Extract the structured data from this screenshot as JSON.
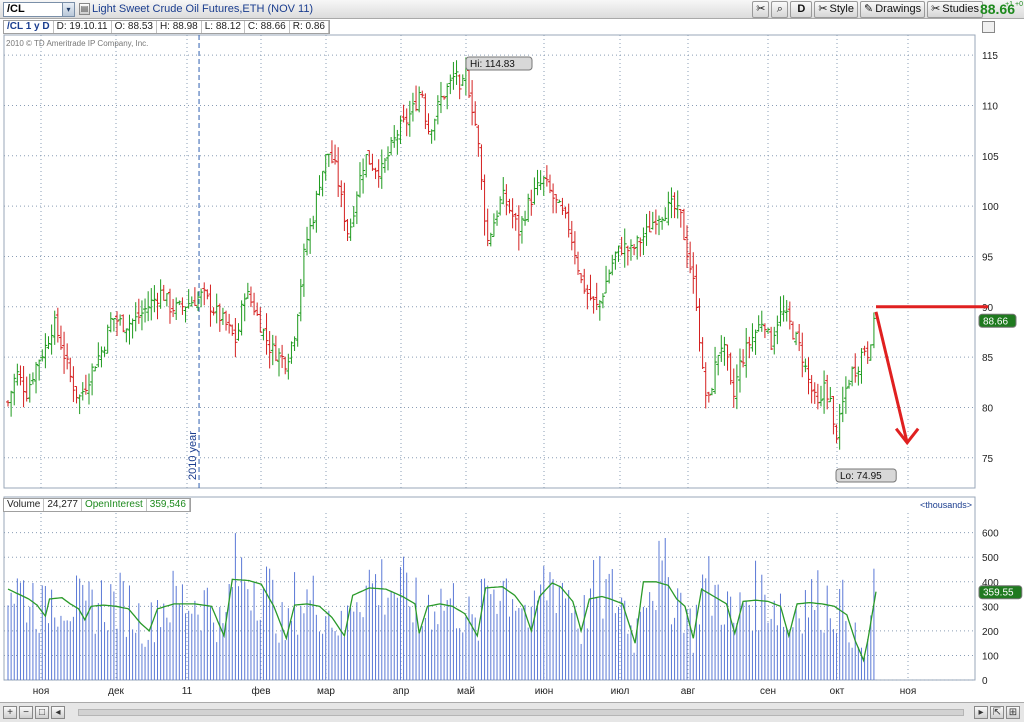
{
  "toolbar": {
    "symbol": "/CL",
    "description": "Light Sweet Crude Oil Futures,ETH (NOV 11)",
    "aggregation": "D",
    "style_label": "Style",
    "drawings_label": "Drawings",
    "studies_label": "Studies",
    "last_price": "88.66",
    "last_change": "+1 +0",
    "icons": [
      "crosshair-icon",
      "magnifier-icon",
      "style-icon",
      "pencil-icon",
      "studies-icon"
    ]
  },
  "infobar": {
    "symbol": "/CL 1 y D",
    "date": "D: 19.10.11",
    "open": "O: 88.53",
    "high": "H: 88.98",
    "low": "L: 88.12",
    "close": "C: 88.66",
    "range": "R: 0.86"
  },
  "copyright": "2010 © TD Ameritrade IP Company, Inc.",
  "price_badges": {
    "hi": "Hi: 114.83",
    "lo": "Lo: 74.95",
    "last": "88.66",
    "year_label": "2010 year",
    "oi_last": "359.55"
  },
  "volume_header": {
    "volume_label": "Volume",
    "volume_value": "24,277",
    "oi_label": "OpenInterest",
    "oi_value": "359,546",
    "units": "<thousands>"
  },
  "colors": {
    "up": "#1e9a1e",
    "down": "#d42020",
    "volume": "#5a78d6",
    "openinterest": "#2a9a2a",
    "grid": "#8a9db5",
    "annotation": "#e02020",
    "badge_green": "#1f7a1f"
  },
  "chart_data": {
    "type": "ohlc",
    "price_axis": {
      "ticks": [
        75,
        80,
        85,
        90,
        95,
        100,
        105,
        110,
        115
      ],
      "range": [
        72,
        117
      ]
    },
    "volume_axis": {
      "ticks": [
        0,
        100,
        200,
        300,
        400,
        500,
        600
      ],
      "range": [
        0,
        680
      ]
    },
    "month_labels": [
      "ноя",
      "дек",
      "11",
      "фев",
      "мар",
      "апр",
      "май",
      "июн",
      "июл",
      "авг",
      "сен",
      "окт",
      "ноя"
    ],
    "price_path": [
      [
        0,
        80.5
      ],
      [
        4,
        83.5
      ],
      [
        9,
        81.5
      ],
      [
        14,
        84.5
      ],
      [
        18,
        86.0
      ],
      [
        22,
        88.5
      ],
      [
        26,
        86.0
      ],
      [
        30,
        83.0
      ],
      [
        34,
        80.8
      ],
      [
        38,
        82.5
      ],
      [
        42,
        84.5
      ],
      [
        46,
        86.0
      ],
      [
        50,
        89.0
      ],
      [
        56,
        88.2
      ],
      [
        62,
        88.8
      ],
      [
        68,
        90.2
      ],
      [
        74,
        91.5
      ],
      [
        78,
        90.0
      ],
      [
        82,
        89.8
      ],
      [
        88,
        90.5
      ],
      [
        94,
        91.2
      ],
      [
        98,
        90.0
      ],
      [
        104,
        88.5
      ],
      [
        110,
        86.5
      ],
      [
        114,
        91.5
      ],
      [
        118,
        90.2
      ],
      [
        122,
        88.0
      ],
      [
        126,
        86.0
      ],
      [
        130,
        85.3
      ],
      [
        134,
        84.5
      ],
      [
        138,
        87.5
      ],
      [
        140,
        90.5
      ],
      [
        143,
        96.0
      ],
      [
        147,
        99.0
      ],
      [
        150,
        102.5
      ],
      [
        154,
        105.5
      ],
      [
        158,
        103.5
      ],
      [
        161,
        100.0
      ],
      [
        164,
        97.0
      ],
      [
        168,
        101.5
      ],
      [
        172,
        105.0
      ],
      [
        176,
        104.0
      ],
      [
        180,
        103.5
      ],
      [
        184,
        105.5
      ],
      [
        188,
        107.5
      ],
      [
        192,
        108.5
      ],
      [
        196,
        110.0
      ],
      [
        199,
        112.0
      ],
      [
        202,
        107.5
      ],
      [
        205,
        108.5
      ],
      [
        208,
        110.5
      ],
      [
        211,
        111.5
      ],
      [
        214,
        112.5
      ],
      [
        216,
        113.5
      ],
      [
        218,
        110.0
      ],
      [
        220,
        113.8
      ],
      [
        223,
        110.5
      ],
      [
        226,
        107.0
      ],
      [
        229,
        100.0
      ],
      [
        231,
        96.5
      ],
      [
        234,
        98.5
      ],
      [
        238,
        101.0
      ],
      [
        242,
        99.5
      ],
      [
        246,
        97.5
      ],
      [
        250,
        100.0
      ],
      [
        254,
        101.5
      ],
      [
        258,
        102.5
      ],
      [
        262,
        101.0
      ],
      [
        266,
        99.5
      ],
      [
        270,
        98.0
      ],
      [
        273,
        95.5
      ],
      [
        276,
        92.5
      ],
      [
        280,
        91.0
      ],
      [
        284,
        89.8
      ],
      [
        288,
        92.5
      ],
      [
        292,
        95.0
      ],
      [
        296,
        96.0
      ],
      [
        300,
        95.5
      ],
      [
        304,
        96.5
      ],
      [
        308,
        97.5
      ],
      [
        312,
        99.0
      ],
      [
        316,
        99.5
      ],
      [
        320,
        100.0
      ],
      [
        324,
        98.8
      ],
      [
        326,
        96.5
      ],
      [
        329,
        93.5
      ],
      [
        332,
        90.0
      ],
      [
        334,
        84.0
      ],
      [
        337,
        80.0
      ],
      [
        340,
        83.5
      ],
      [
        343,
        86.5
      ],
      [
        346,
        85.0
      ],
      [
        349,
        80.5
      ],
      [
        352,
        84.0
      ],
      [
        356,
        86.0
      ],
      [
        360,
        87.5
      ],
      [
        364,
        89.0
      ],
      [
        367,
        86.0
      ],
      [
        370,
        88.5
      ],
      [
        373,
        89.5
      ],
      [
        376,
        88.5
      ],
      [
        379,
        87.0
      ],
      [
        382,
        85.5
      ],
      [
        385,
        83.0
      ],
      [
        388,
        81.0
      ],
      [
        391,
        79.5
      ],
      [
        393,
        82.5
      ],
      [
        396,
        80.5
      ],
      [
        398,
        77.0
      ],
      [
        400,
        78.0
      ],
      [
        403,
        81.5
      ],
      [
        406,
        83.5
      ],
      [
        409,
        84.0
      ],
      [
        412,
        86.0
      ],
      [
        414,
        85.5
      ],
      [
        416,
        87.5
      ],
      [
        418,
        88.66
      ]
    ],
    "openinterest_path": [
      [
        0,
        370
      ],
      [
        5,
        350
      ],
      [
        10,
        330
      ],
      [
        14,
        305
      ],
      [
        18,
        260
      ],
      [
        20,
        330
      ],
      [
        26,
        335
      ],
      [
        30,
        310
      ],
      [
        34,
        290
      ],
      [
        37,
        245
      ],
      [
        40,
        300
      ],
      [
        46,
        305
      ],
      [
        52,
        300
      ],
      [
        58,
        290
      ],
      [
        64,
        230
      ],
      [
        68,
        200
      ],
      [
        72,
        290
      ],
      [
        80,
        310
      ],
      [
        90,
        310
      ],
      [
        98,
        300
      ],
      [
        104,
        180
      ],
      [
        108,
        410
      ],
      [
        116,
        405
      ],
      [
        122,
        390
      ],
      [
        128,
        300
      ],
      [
        134,
        170
      ],
      [
        138,
        305
      ],
      [
        144,
        310
      ],
      [
        150,
        300
      ],
      [
        156,
        255
      ],
      [
        162,
        180
      ],
      [
        166,
        345
      ],
      [
        174,
        375
      ],
      [
        182,
        370
      ],
      [
        190,
        340
      ],
      [
        196,
        310
      ],
      [
        198,
        190
      ],
      [
        202,
        300
      ],
      [
        208,
        310
      ],
      [
        214,
        300
      ],
      [
        220,
        270
      ],
      [
        226,
        180
      ],
      [
        230,
        375
      ],
      [
        238,
        380
      ],
      [
        244,
        345
      ],
      [
        248,
        300
      ],
      [
        252,
        200
      ],
      [
        256,
        340
      ],
      [
        262,
        395
      ],
      [
        266,
        380
      ],
      [
        272,
        320
      ],
      [
        276,
        200
      ],
      [
        280,
        330
      ],
      [
        286,
        340
      ],
      [
        290,
        330
      ],
      [
        296,
        310
      ],
      [
        302,
        150
      ],
      [
        306,
        400
      ],
      [
        312,
        400
      ],
      [
        318,
        385
      ],
      [
        322,
        330
      ],
      [
        326,
        300
      ],
      [
        330,
        170
      ],
      [
        334,
        370
      ],
      [
        338,
        350
      ],
      [
        342,
        330
      ],
      [
        346,
        310
      ],
      [
        350,
        190
      ],
      [
        354,
        320
      ],
      [
        360,
        325
      ],
      [
        366,
        320
      ],
      [
        372,
        300
      ],
      [
        376,
        180
      ],
      [
        380,
        310
      ],
      [
        386,
        315
      ],
      [
        392,
        310
      ],
      [
        398,
        300
      ],
      [
        404,
        265
      ],
      [
        408,
        160
      ],
      [
        412,
        80
      ],
      [
        414,
        160
      ],
      [
        418,
        359.55
      ]
    ],
    "annotations": [
      {
        "kind": "horizontal-line",
        "price": 90.0,
        "from_bar": 418,
        "to_bar": 472
      },
      {
        "kind": "arrow",
        "from": [
          418,
          89.5
        ],
        "to": [
          433,
          76.5
        ]
      }
    ],
    "vertical_marker": {
      "bar": 92,
      "label": "2010 year"
    },
    "bars": 418
  }
}
